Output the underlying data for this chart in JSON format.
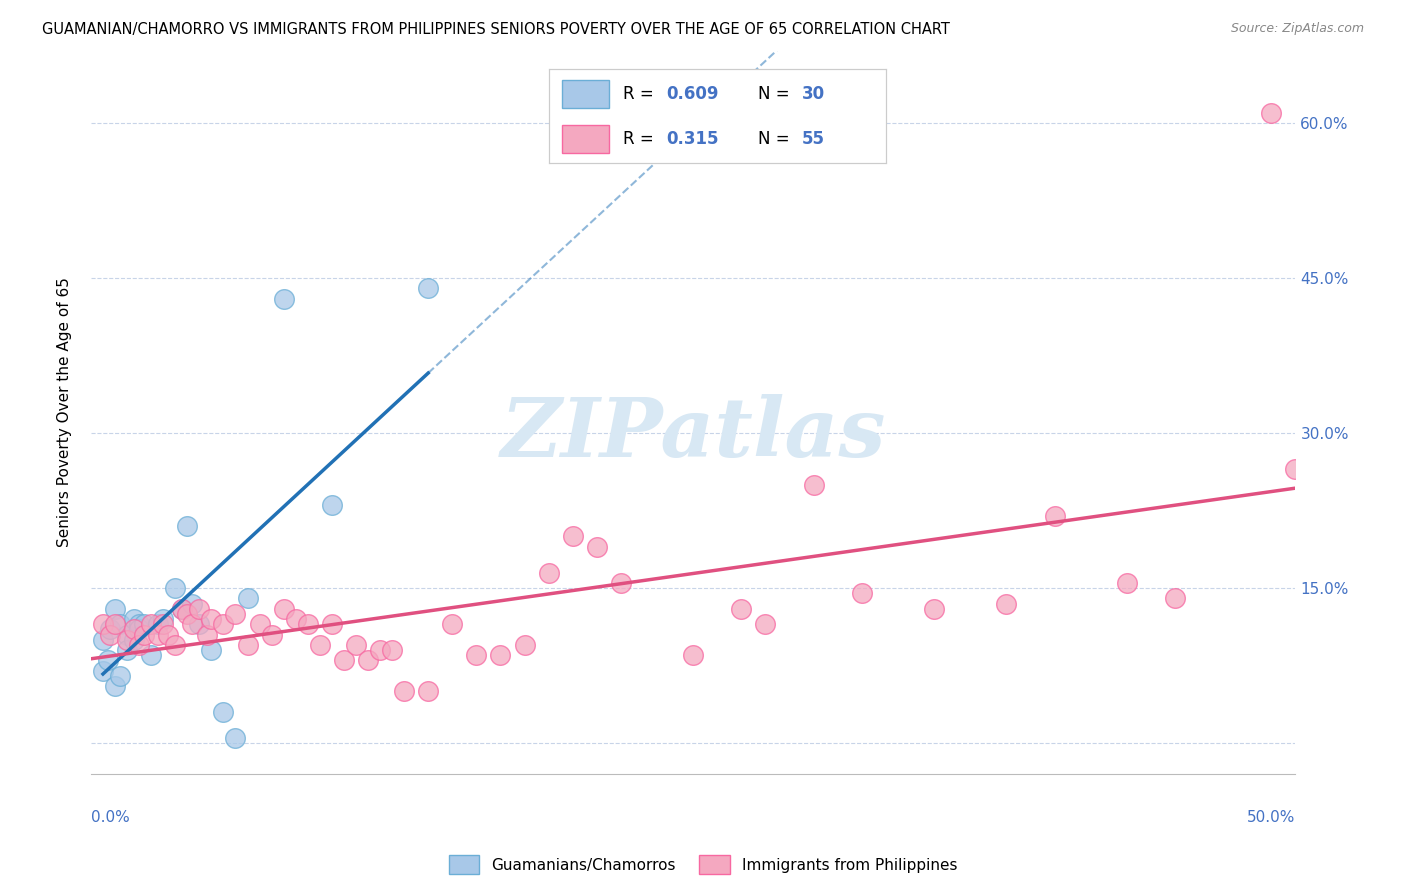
{
  "title": "GUAMANIAN/CHAMORRO VS IMMIGRANTS FROM PHILIPPINES SENIORS POVERTY OVER THE AGE OF 65 CORRELATION CHART",
  "source": "Source: ZipAtlas.com",
  "ylabel": "Seniors Poverty Over the Age of 65",
  "legend_label_blue": "Guamanians/Chamorros",
  "legend_label_pink": "Immigrants from Philippines",
  "blue_color": "#a8c8e8",
  "pink_color": "#f4a8c0",
  "blue_line_color": "#2171b5",
  "pink_line_color": "#e05080",
  "blue_dot_edge": "#6baed6",
  "pink_dot_edge": "#f768a1",
  "watermark_color": "#d8e8f4",
  "blue_scatter_x": [
    0.005,
    0.008,
    0.01,
    0.012,
    0.015,
    0.018,
    0.02,
    0.005,
    0.007,
    0.01,
    0.012,
    0.015,
    0.018,
    0.02,
    0.022,
    0.025,
    0.028,
    0.03,
    0.035,
    0.038,
    0.04,
    0.042,
    0.045,
    0.05,
    0.055,
    0.06,
    0.065,
    0.08,
    0.1,
    0.14
  ],
  "blue_scatter_y": [
    0.1,
    0.11,
    0.13,
    0.115,
    0.105,
    0.12,
    0.115,
    0.07,
    0.08,
    0.055,
    0.065,
    0.09,
    0.1,
    0.11,
    0.115,
    0.085,
    0.115,
    0.12,
    0.15,
    0.13,
    0.21,
    0.135,
    0.115,
    0.09,
    0.03,
    0.005,
    0.14,
    0.43,
    0.23,
    0.44
  ],
  "pink_scatter_x": [
    0.005,
    0.008,
    0.01,
    0.015,
    0.018,
    0.02,
    0.022,
    0.025,
    0.028,
    0.03,
    0.032,
    0.035,
    0.038,
    0.04,
    0.042,
    0.045,
    0.048,
    0.05,
    0.055,
    0.06,
    0.065,
    0.07,
    0.075,
    0.08,
    0.085,
    0.09,
    0.095,
    0.1,
    0.105,
    0.11,
    0.115,
    0.12,
    0.125,
    0.13,
    0.14,
    0.15,
    0.16,
    0.17,
    0.18,
    0.19,
    0.2,
    0.21,
    0.22,
    0.25,
    0.27,
    0.28,
    0.3,
    0.32,
    0.35,
    0.38,
    0.4,
    0.43,
    0.45,
    0.49,
    0.5
  ],
  "pink_scatter_y": [
    0.115,
    0.105,
    0.115,
    0.1,
    0.11,
    0.095,
    0.105,
    0.115,
    0.105,
    0.115,
    0.105,
    0.095,
    0.13,
    0.125,
    0.115,
    0.13,
    0.105,
    0.12,
    0.115,
    0.125,
    0.095,
    0.115,
    0.105,
    0.13,
    0.12,
    0.115,
    0.095,
    0.115,
    0.08,
    0.095,
    0.08,
    0.09,
    0.09,
    0.05,
    0.05,
    0.115,
    0.085,
    0.085,
    0.095,
    0.165,
    0.2,
    0.19,
    0.155,
    0.085,
    0.13,
    0.115,
    0.25,
    0.145,
    0.13,
    0.135,
    0.22,
    0.155,
    0.14,
    0.61,
    0.265
  ],
  "xlim": [
    0.0,
    0.5
  ],
  "ylim": [
    -0.03,
    0.67
  ],
  "ytick_values": [
    0.0,
    0.15,
    0.3,
    0.45,
    0.6
  ],
  "ytick_labels": [
    "",
    "15.0%",
    "30.0%",
    "45.0%",
    "60.0%"
  ],
  "xtick_values": [
    0.0,
    0.1,
    0.2,
    0.3,
    0.4,
    0.5
  ],
  "background_color": "#ffffff",
  "grid_color": "#c8d4e8",
  "title_fontsize": 10.5,
  "label_fontsize": 11,
  "tick_label_color": "#4472c4"
}
